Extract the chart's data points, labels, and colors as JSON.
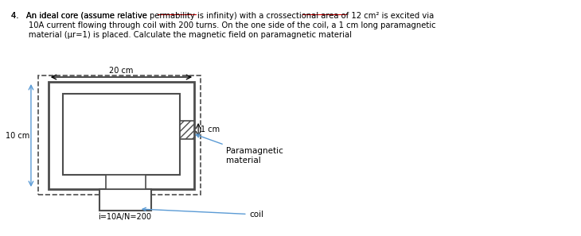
{
  "title_text": "4.   An ideal core (assume relative permability is infinity) with a crossectional area of 12 cm² is excited via\n       10A current flowing through coil with 200 turns. On the one side of the coil, a 1 cm long paramagnetic\n       material (μr=1) is placed. Calculate the magnetic field on paramagnetic material",
  "dim_20cm_label": "20 cm",
  "dim_10cm_label": "10 cm",
  "dim_1cm_label": "1 cm",
  "paramagnetic_label": "Paramagnetic\nmaterial",
  "coil_label": "coil",
  "current_label": "i=10A/N=200",
  "bg_color": "#ffffff",
  "core_color": "#4d4d4d",
  "dashed_color": "#4d4d4d",
  "hatch_color": "#4d4d4d",
  "arrow_color": "#5b9bd5",
  "text_color": "#000000",
  "underline_color_permability": "#ff0000",
  "underline_color_crossectional": "#ff0000"
}
